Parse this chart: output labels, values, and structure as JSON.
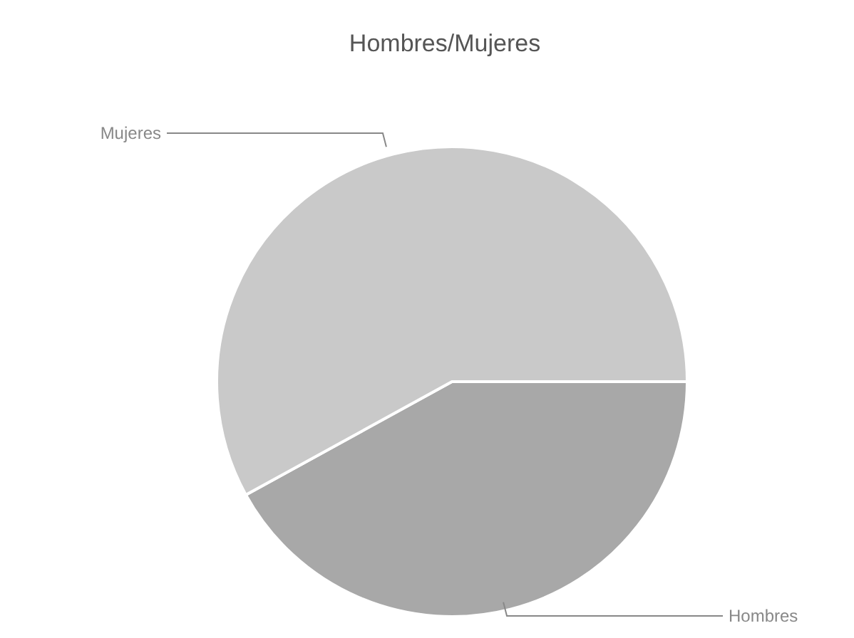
{
  "chart_data": {
    "type": "pie",
    "title": "Hombres/Mujeres",
    "categories": [
      "Hombres",
      "Mujeres"
    ],
    "values": [
      42,
      58
    ],
    "colors": [
      "#a8a8a8",
      "#c9c9c9"
    ]
  }
}
